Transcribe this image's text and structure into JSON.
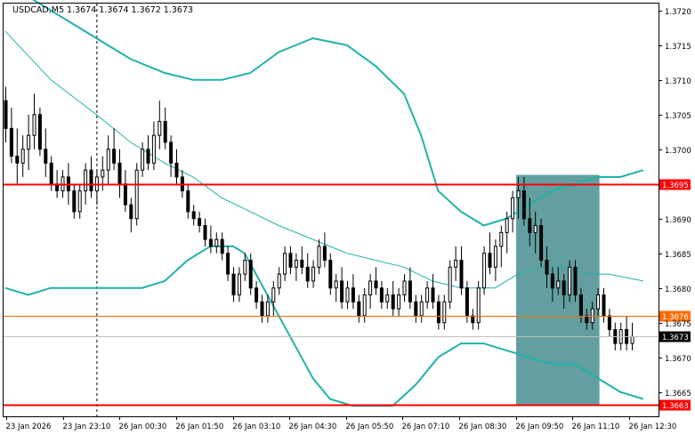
{
  "window": {
    "symbol_info": "USDCAD,M5  1.3674 1.3674 1.3672 1.3673"
  },
  "colors": {
    "background": "#ffffff",
    "frame": "#000000",
    "bullish_candle": "#ffffff",
    "bearish_candle": "#000000",
    "bollinger": "#20b2aa",
    "middle_band": "#20b2aa",
    "resistance_line": "#ff0000",
    "entry_line": "#ff6a00",
    "price_label_bg": "#000000",
    "zone_fill": "#2f7f80",
    "level_label_bg": "#ff0000"
  },
  "chart_data": {
    "type": "candlestick",
    "symbol": "USDCAD",
    "timeframe": "M5",
    "ylim": [
      1.36615,
      1.3721
    ],
    "y_ticks": [
      "1.3720",
      "1.3715",
      "1.3710",
      "1.3705",
      "1.3700",
      "1.3690",
      "1.3685",
      "1.3680",
      "1.3675",
      "1.3670",
      "1.3665"
    ],
    "x_ticks": [
      "23 Jan 2026",
      "23 Jan 23:10",
      "26 Jan 00:30",
      "26 Jan 01:50",
      "26 Jan 03:10",
      "26 Jan 04:30",
      "26 Jan 05:50",
      "26 Jan 07:10",
      "26 Jan 08:30",
      "26 Jan 09:50",
      "26 Jan 11:10",
      "26 Jan 12:30"
    ],
    "horizontal_levels": [
      {
        "label": "1.3695",
        "value": 1.3695,
        "style": "resistance"
      },
      {
        "label": "1.3676",
        "value": 1.3676,
        "style": "entry"
      },
      {
        "label": "1.3663",
        "value": 1.36632,
        "style": "support"
      }
    ],
    "current_price": {
      "label": "1.3673",
      "value": 1.3673
    },
    "zone": {
      "start_index": 90,
      "end_index": 104,
      "top": 1.36963,
      "bottom": 1.36632
    },
    "vertical_marker_index": 16,
    "candles": [
      [
        1.3707,
        1.3709,
        1.3701,
        1.3703
      ],
      [
        1.3703,
        1.3706,
        1.3698,
        1.3699
      ],
      [
        1.3699,
        1.3703,
        1.3695,
        1.3698
      ],
      [
        1.3698,
        1.3702,
        1.3696,
        1.37
      ],
      [
        1.37,
        1.3705,
        1.3697,
        1.3702
      ],
      [
        1.3702,
        1.3708,
        1.37,
        1.3705
      ],
      [
        1.3705,
        1.3706,
        1.3699,
        1.37
      ],
      [
        1.37,
        1.3703,
        1.3696,
        1.3698
      ],
      [
        1.3698,
        1.3699,
        1.3694,
        1.3695
      ],
      [
        1.3695,
        1.3697,
        1.3693,
        1.3694
      ],
      [
        1.3694,
        1.3697,
        1.3693,
        1.3696
      ],
      [
        1.3696,
        1.3698,
        1.3692,
        1.3694
      ],
      [
        1.3694,
        1.3695,
        1.369,
        1.3691
      ],
      [
        1.3691,
        1.3695,
        1.369,
        1.3694
      ],
      [
        1.3694,
        1.3698,
        1.3692,
        1.3697
      ],
      [
        1.3697,
        1.3699,
        1.3693,
        1.3694
      ],
      [
        1.3694,
        1.3697,
        1.3692,
        1.3696
      ],
      [
        1.3696,
        1.3699,
        1.3694,
        1.3697
      ],
      [
        1.3697,
        1.3702,
        1.3695,
        1.37
      ],
      [
        1.37,
        1.3703,
        1.3697,
        1.3698
      ],
      [
        1.3698,
        1.37,
        1.3693,
        1.3695
      ],
      [
        1.3695,
        1.3697,
        1.3691,
        1.3692
      ],
      [
        1.3692,
        1.3693,
        1.3688,
        1.369
      ],
      [
        1.369,
        1.3698,
        1.3689,
        1.3697
      ],
      [
        1.3697,
        1.3701,
        1.3696,
        1.37
      ],
      [
        1.37,
        1.3702,
        1.3697,
        1.3698
      ],
      [
        1.3698,
        1.3704,
        1.3697,
        1.3702
      ],
      [
        1.3702,
        1.3707,
        1.37,
        1.3704
      ],
      [
        1.3704,
        1.3706,
        1.37,
        1.3701
      ],
      [
        1.3701,
        1.3702,
        1.3696,
        1.3698
      ],
      [
        1.3698,
        1.37,
        1.3695,
        1.3696
      ],
      [
        1.3696,
        1.3697,
        1.3693,
        1.3694
      ],
      [
        1.3694,
        1.3695,
        1.369,
        1.3691
      ],
      [
        1.3691,
        1.3692,
        1.3689,
        1.369
      ],
      [
        1.369,
        1.3691,
        1.3688,
        1.3689
      ],
      [
        1.3689,
        1.369,
        1.3686,
        1.3687
      ],
      [
        1.3687,
        1.3689,
        1.3685,
        1.3686
      ],
      [
        1.3686,
        1.3688,
        1.3685,
        1.3687
      ],
      [
        1.3687,
        1.3688,
        1.3684,
        1.3685
      ],
      [
        1.3685,
        1.3686,
        1.3681,
        1.3682
      ],
      [
        1.3682,
        1.3683,
        1.3678,
        1.3679
      ],
      [
        1.3679,
        1.3683,
        1.3678,
        1.3682
      ],
      [
        1.3682,
        1.3685,
        1.3681,
        1.3684
      ],
      [
        1.3684,
        1.3685,
        1.3679,
        1.368
      ],
      [
        1.368,
        1.3681,
        1.3677,
        1.3678
      ],
      [
        1.3678,
        1.3679,
        1.3675,
        1.3676
      ],
      [
        1.3676,
        1.3679,
        1.3675,
        1.3678
      ],
      [
        1.3678,
        1.3681,
        1.3676,
        1.368
      ],
      [
        1.368,
        1.3683,
        1.3679,
        1.3682
      ],
      [
        1.3682,
        1.3686,
        1.3681,
        1.3685
      ],
      [
        1.3685,
        1.3686,
        1.3682,
        1.3683
      ],
      [
        1.3683,
        1.3685,
        1.3681,
        1.3684
      ],
      [
        1.3684,
        1.3686,
        1.3682,
        1.3683
      ],
      [
        1.3683,
        1.3685,
        1.368,
        1.3681
      ],
      [
        1.3681,
        1.3684,
        1.368,
        1.3683
      ],
      [
        1.3683,
        1.3687,
        1.3682,
        1.3686
      ],
      [
        1.3686,
        1.3688,
        1.3683,
        1.3684
      ],
      [
        1.3684,
        1.3685,
        1.3679,
        1.368
      ],
      [
        1.368,
        1.3682,
        1.3678,
        1.3681
      ],
      [
        1.3681,
        1.3683,
        1.3677,
        1.3678
      ],
      [
        1.3678,
        1.3681,
        1.3677,
        1.368
      ],
      [
        1.368,
        1.3682,
        1.3677,
        1.3678
      ],
      [
        1.3678,
        1.3679,
        1.3675,
        1.3676
      ],
      [
        1.3676,
        1.368,
        1.3675,
        1.3679
      ],
      [
        1.3679,
        1.3682,
        1.3677,
        1.3681
      ],
      [
        1.3681,
        1.3683,
        1.3679,
        1.368
      ],
      [
        1.368,
        1.3681,
        1.3677,
        1.3678
      ],
      [
        1.3678,
        1.368,
        1.3677,
        1.3679
      ],
      [
        1.3679,
        1.3681,
        1.3676,
        1.3677
      ],
      [
        1.3677,
        1.368,
        1.3676,
        1.3679
      ],
      [
        1.3679,
        1.3682,
        1.3678,
        1.3681
      ],
      [
        1.3681,
        1.3683,
        1.3677,
        1.3678
      ],
      [
        1.3678,
        1.3679,
        1.3675,
        1.3676
      ],
      [
        1.3676,
        1.3679,
        1.3675,
        1.3678
      ],
      [
        1.3678,
        1.3681,
        1.3677,
        1.368
      ],
      [
        1.368,
        1.3682,
        1.3677,
        1.3678
      ],
      [
        1.3678,
        1.3679,
        1.3674,
        1.3675
      ],
      [
        1.3675,
        1.3679,
        1.3674,
        1.3678
      ],
      [
        1.3678,
        1.3684,
        1.3677,
        1.3683
      ],
      [
        1.3683,
        1.3686,
        1.3681,
        1.3684
      ],
      [
        1.3684,
        1.3686,
        1.3679,
        1.368
      ],
      [
        1.368,
        1.3681,
        1.3675,
        1.3676
      ],
      [
        1.3676,
        1.3677,
        1.3674,
        1.3675
      ],
      [
        1.3675,
        1.3681,
        1.3674,
        1.368
      ],
      [
        1.368,
        1.3686,
        1.3679,
        1.3685
      ],
      [
        1.3685,
        1.3688,
        1.3682,
        1.3683
      ],
      [
        1.3683,
        1.3687,
        1.3681,
        1.3686
      ],
      [
        1.3686,
        1.3689,
        1.3683,
        1.3688
      ],
      [
        1.3688,
        1.3691,
        1.3685,
        1.369
      ],
      [
        1.369,
        1.3694,
        1.3688,
        1.3693
      ],
      [
        1.3693,
        1.3696,
        1.369,
        1.3694
      ],
      [
        1.3694,
        1.3696,
        1.3689,
        1.369
      ],
      [
        1.369,
        1.3693,
        1.3686,
        1.3688
      ],
      [
        1.3688,
        1.3691,
        1.3685,
        1.3689
      ],
      [
        1.3689,
        1.369,
        1.3683,
        1.3684
      ],
      [
        1.3684,
        1.3686,
        1.368,
        1.3682
      ],
      [
        1.3682,
        1.3683,
        1.3678,
        1.368
      ],
      [
        1.368,
        1.3683,
        1.3679,
        1.3681
      ],
      [
        1.3681,
        1.3682,
        1.3677,
        1.3679
      ],
      [
        1.3679,
        1.3684,
        1.3678,
        1.3683
      ],
      [
        1.3683,
        1.3684,
        1.3678,
        1.3679
      ],
      [
        1.3679,
        1.368,
        1.3675,
        1.3676
      ],
      [
        1.3676,
        1.3677,
        1.3674,
        1.3675
      ],
      [
        1.3675,
        1.3678,
        1.3674,
        1.3677
      ],
      [
        1.3677,
        1.368,
        1.3676,
        1.3679
      ],
      [
        1.3679,
        1.368,
        1.3675,
        1.3676
      ],
      [
        1.3676,
        1.3677,
        1.3673,
        1.3674
      ],
      [
        1.3674,
        1.3675,
        1.3671,
        1.3672
      ],
      [
        1.3672,
        1.3675,
        1.3671,
        1.3674
      ],
      [
        1.3674,
        1.3676,
        1.3671,
        1.3672
      ],
      [
        1.3672,
        1.3675,
        1.3671,
        1.3673
      ]
    ],
    "bollinger_upper": [
      [
        0,
        1.3724
      ],
      [
        8,
        1.372
      ],
      [
        16,
        1.3716
      ],
      [
        22,
        1.3713
      ],
      [
        28,
        1.3711
      ],
      [
        33,
        1.371
      ],
      [
        38,
        1.371
      ],
      [
        43,
        1.3711
      ],
      [
        48,
        1.3714
      ],
      [
        54,
        1.3716
      ],
      [
        60,
        1.3715
      ],
      [
        65,
        1.3712
      ],
      [
        70,
        1.3708
      ],
      [
        73,
        1.3702
      ],
      [
        76,
        1.3694
      ],
      [
        80,
        1.3691
      ],
      [
        84,
        1.3689
      ],
      [
        88,
        1.369
      ],
      [
        92,
        1.3692
      ],
      [
        96,
        1.3694
      ],
      [
        100,
        1.3695
      ],
      [
        104,
        1.3696
      ],
      [
        108,
        1.3696
      ],
      [
        112,
        1.3697
      ]
    ],
    "bollinger_middle": [
      [
        0,
        1.3717
      ],
      [
        8,
        1.371
      ],
      [
        16,
        1.3705
      ],
      [
        22,
        1.3701
      ],
      [
        28,
        1.3698
      ],
      [
        33,
        1.3696
      ],
      [
        38,
        1.3693
      ],
      [
        43,
        1.3691
      ],
      [
        48,
        1.3689
      ],
      [
        54,
        1.3687
      ],
      [
        60,
        1.3685
      ],
      [
        65,
        1.3684
      ],
      [
        70,
        1.3683
      ],
      [
        75,
        1.3681
      ],
      [
        80,
        1.368
      ],
      [
        86,
        1.368
      ],
      [
        90,
        1.3682
      ],
      [
        94,
        1.3683
      ],
      [
        98,
        1.3683
      ],
      [
        102,
        1.3682
      ],
      [
        106,
        1.3682
      ],
      [
        112,
        1.3681
      ]
    ],
    "bollinger_lower": [
      [
        0,
        1.368
      ],
      [
        4,
        1.3679
      ],
      [
        8,
        1.368
      ],
      [
        12,
        1.368
      ],
      [
        16,
        1.368
      ],
      [
        20,
        1.368
      ],
      [
        24,
        1.368
      ],
      [
        28,
        1.3681
      ],
      [
        32,
        1.3684
      ],
      [
        36,
        1.3686
      ],
      [
        40,
        1.3686
      ],
      [
        42,
        1.3685
      ],
      [
        46,
        1.3679
      ],
      [
        50,
        1.3673
      ],
      [
        54,
        1.3667
      ],
      [
        57,
        1.3664
      ],
      [
        61,
        1.3663
      ],
      [
        65,
        1.3663
      ],
      [
        68,
        1.3663
      ],
      [
        72,
        1.3666
      ],
      [
        76,
        1.367
      ],
      [
        80,
        1.3672
      ],
      [
        84,
        1.3672
      ],
      [
        88,
        1.3671
      ],
      [
        92,
        1.367
      ],
      [
        96,
        1.3669
      ],
      [
        100,
        1.3669
      ],
      [
        104,
        1.3667
      ],
      [
        108,
        1.3665
      ],
      [
        112,
        1.3664
      ]
    ]
  }
}
